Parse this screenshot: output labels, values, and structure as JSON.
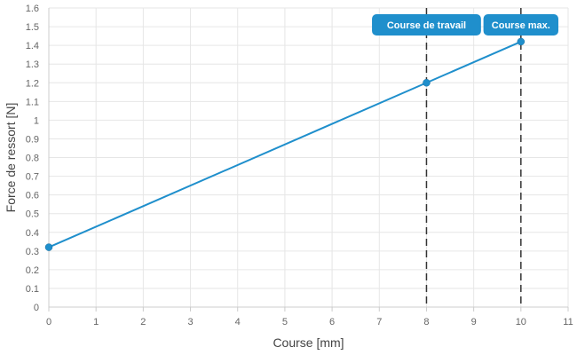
{
  "chart_data": {
    "type": "line",
    "xlabel": "Course [mm]",
    "ylabel": "Force de ressort [N]",
    "xlim": [
      0,
      11
    ],
    "ylim": [
      0,
      1.6
    ],
    "x_ticks": [
      0,
      1,
      2,
      3,
      4,
      5,
      6,
      7,
      8,
      9,
      10,
      11
    ],
    "y_ticks": [
      0,
      0.1,
      0.2,
      0.3,
      0.4,
      0.5,
      0.6,
      0.7,
      0.8,
      0.9,
      1.0,
      1.1,
      1.2,
      1.3,
      1.4,
      1.5,
      1.6
    ],
    "grid": true,
    "series": [
      {
        "color": "#1f8fcc",
        "points": [
          {
            "x": 0,
            "y": 0.32
          },
          {
            "x": 8,
            "y": 1.2
          },
          {
            "x": 10,
            "y": 1.42
          }
        ]
      }
    ],
    "vertical_markers": [
      {
        "x": 8,
        "label": "Course de travail"
      },
      {
        "x": 10,
        "label": "Course max."
      }
    ],
    "marker_label_color": "#1f8fcc"
  }
}
